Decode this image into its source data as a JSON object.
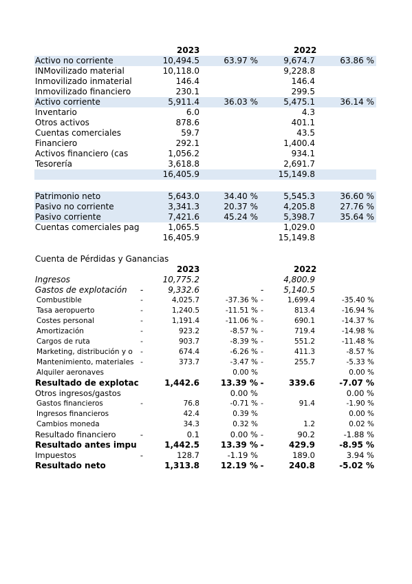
{
  "balance": {
    "header": {
      "year1": "2023",
      "year2": "2022"
    },
    "rows": [
      {
        "label": "Activo no corriente",
        "v1": "10,494.5",
        "p1": "63.97 %",
        "v2": "9,674.7",
        "p2": "63.86 %",
        "shade": true
      },
      {
        "label": "INMovilizado material",
        "v1": "10,118.0",
        "p1": "",
        "v2": "9,228.8",
        "p2": ""
      },
      {
        "label": "Inmovilizado inmaterial",
        "v1": "146.4",
        "p1": "",
        "v2": "146.4",
        "p2": ""
      },
      {
        "label": "Inmovilizado financiero",
        "v1": "230.1",
        "p1": "",
        "v2": "299.5",
        "p2": ""
      },
      {
        "label": "Activo corriente",
        "v1": "5,911.4",
        "p1": "36.03 %",
        "v2": "5,475.1",
        "p2": "36.14 %",
        "shade": true
      },
      {
        "label": "Inventario",
        "v1": "6.0",
        "p1": "",
        "v2": "4.3",
        "p2": ""
      },
      {
        "label": "Otros activos",
        "v1": "878.6",
        "p1": "",
        "v2": "401.1",
        "p2": ""
      },
      {
        "label": "Cuentas comerciales",
        "v1": "59.7",
        "p1": "",
        "v2": "43.5",
        "p2": ""
      },
      {
        "label": "Financiero",
        "v1": "292.1",
        "p1": "",
        "v2": "1,400.4",
        "p2": ""
      },
      {
        "label": "Activos financiero (cas",
        "v1": "1,056.2",
        "p1": "",
        "v2": "934.1",
        "p2": ""
      },
      {
        "label": "Tesorería",
        "v1": "3,618.8",
        "p1": "",
        "v2": "2,691.7",
        "p2": ""
      },
      {
        "label": "",
        "v1": "16,405.9",
        "p1": "",
        "v2": "15,149.8",
        "p2": "",
        "shade": true
      }
    ],
    "rows2": [
      {
        "label": "Patrimonio neto",
        "v1": "5,643.0",
        "p1": "34.40 %",
        "v2": "5,545.3",
        "p2": "36.60 %",
        "shade": true
      },
      {
        "label": "Pasivo no corriente",
        "v1": "3,341.3",
        "p1": "20.37 %",
        "v2": "4,205.8",
        "p2": "27.76 %",
        "shade": true
      },
      {
        "label": "Pasivo corriente",
        "v1": "7,421.6",
        "p1": "45.24 %",
        "v2": "5,398.7",
        "p2": "35.64 %",
        "shade": true
      },
      {
        "label": "Cuentas comerciales pag",
        "v1": "1,065.5",
        "p1": "",
        "v2": "1,029.0",
        "p2": ""
      },
      {
        "label": "",
        "v1": "16,405.9",
        "p1": "",
        "v2": "15,149.8",
        "p2": ""
      }
    ]
  },
  "pnl": {
    "title": "Cuenta de Pérdidas y Ganancias",
    "header": {
      "year1": "2023",
      "year2": "2022"
    },
    "rows": [
      {
        "label": "Ingresos",
        "d1": "",
        "v1": "10,775.2",
        "p1": "",
        "d2": "",
        "v2": "4,800.9",
        "p2": "",
        "style": "italic"
      },
      {
        "label": "Gastos de explotación",
        "d1": "-",
        "v1": "9,332.6",
        "p1": "",
        "d2": "-",
        "v2": "5,140.5",
        "p2": "",
        "style": "italic"
      },
      {
        "label": "Combustible",
        "d1": "-",
        "v1": "4,025.7",
        "p1": "-37.36 %",
        "d2": "-",
        "v2": "1,699.4",
        "p2": "-35.40 %",
        "style": "small"
      },
      {
        "label": "Tasa aeropuerto",
        "d1": "-",
        "v1": "1,240.5",
        "p1": "-11.51 %",
        "d2": "-",
        "v2": "813.4",
        "p2": "-16.94 %",
        "style": "small"
      },
      {
        "label": "Costes personal",
        "d1": "-",
        "v1": "1,191.4",
        "p1": "-11.06 %",
        "d2": "-",
        "v2": "690.1",
        "p2": "-14.37 %",
        "style": "small"
      },
      {
        "label": "Amortización",
        "d1": "-",
        "v1": "923.2",
        "p1": "-8.57 %",
        "d2": "-",
        "v2": "719.4",
        "p2": "-14.98 %",
        "style": "small"
      },
      {
        "label": "Cargos de ruta",
        "d1": "-",
        "v1": "903.7",
        "p1": "-8.39 %",
        "d2": "-",
        "v2": "551.2",
        "p2": "-11.48 %",
        "style": "small"
      },
      {
        "label": "Marketing, distribución y o",
        "d1": "-",
        "v1": "674.4",
        "p1": "-6.26 %",
        "d2": "-",
        "v2": "411.3",
        "p2": "-8.57 %",
        "style": "small"
      },
      {
        "label": "Mantenimiento, materiales",
        "d1": "-",
        "v1": "373.7",
        "p1": "-3.47 %",
        "d2": "-",
        "v2": "255.7",
        "p2": "-5.33 %",
        "style": "small"
      },
      {
        "label": "Alquiler aeronaves",
        "d1": "",
        "v1": "",
        "p1": "0.00 %",
        "d2": "",
        "v2": "",
        "p2": "0.00 %",
        "style": "small"
      },
      {
        "label": "Resultado de explotac",
        "d1": "",
        "v1": "1,442.6",
        "p1": "13.39 %",
        "d2": "-",
        "v2": "339.6",
        "p2": "-7.07 %",
        "style": "bold"
      },
      {
        "label": "Otros ingresos/gastos",
        "d1": "",
        "v1": "",
        "p1": "0.00 %",
        "d2": "",
        "v2": "",
        "p2": "0.00 %",
        "style": "normal"
      },
      {
        "label": "Gastos financieros",
        "d1": "-",
        "v1": "76.8",
        "p1": "-0.71 %",
        "d2": "-",
        "v2": "91.4",
        "p2": "-1.90 %",
        "style": "small"
      },
      {
        "label": "Ingresos financieros",
        "d1": "",
        "v1": "42.4",
        "p1": "0.39 %",
        "d2": "",
        "v2": "",
        "p2": "0.00 %",
        "style": "small"
      },
      {
        "label": "Cambios moneda",
        "d1": "",
        "v1": "34.3",
        "p1": "0.32 %",
        "d2": "",
        "v2": "1.2",
        "p2": "0.02 %",
        "style": "small"
      },
      {
        "label": "Resultado financiero",
        "d1": "-",
        "v1": "0.1",
        "p1": "0.00 %",
        "d2": "-",
        "v2": "90.2",
        "p2": "-1.88 %",
        "style": "normal"
      },
      {
        "label": "Resultado antes impu",
        "d1": "",
        "v1": "1,442.5",
        "p1": "13.39 %",
        "d2": "-",
        "v2": "429.9",
        "p2": "-8.95 %",
        "style": "bold"
      },
      {
        "label": "Impuestos",
        "d1": "-",
        "v1": "128.7",
        "p1": "-1.19 %",
        "d2": "",
        "v2": "189.0",
        "p2": "3.94 %",
        "style": "normal"
      },
      {
        "label": "Resultado neto",
        "d1": "",
        "v1": "1,313.8",
        "p1": "12.19 %",
        "d2": "-",
        "v2": "240.8",
        "p2": "-5.02 %",
        "style": "bold"
      }
    ]
  }
}
